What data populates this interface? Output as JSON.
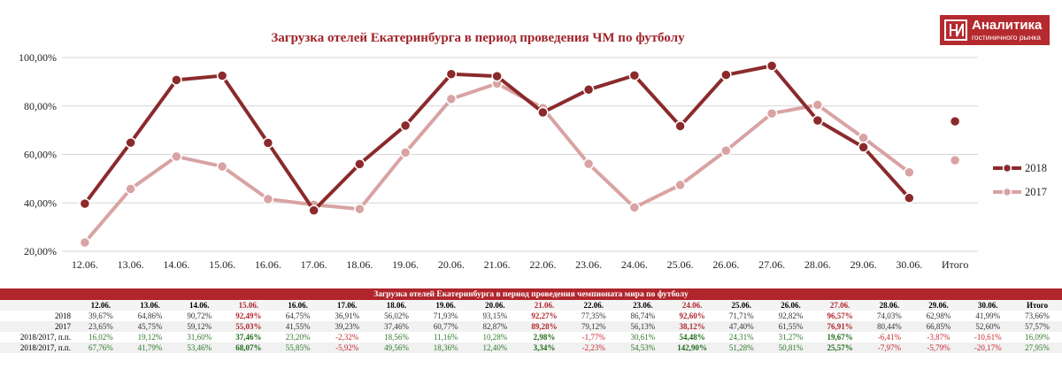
{
  "chart_data": {
    "type": "line",
    "title": "Загрузка отелей Екатеринбурга в период проведения ЧМ по футболу",
    "categories": [
      "12.06.",
      "13.06.",
      "14.06.",
      "15.06.",
      "16.06.",
      "17.06.",
      "18.06.",
      "19.06.",
      "20.06.",
      "21.06.",
      "22.06.",
      "23.06.",
      "24.06.",
      "25.06.",
      "26.06.",
      "27.06.",
      "28.06.",
      "29.06.",
      "30.06.",
      "Итого"
    ],
    "series": [
      {
        "name": "2018",
        "color": "#8b2a2c",
        "values": [
          39.67,
          64.86,
          90.72,
          92.49,
          64.75,
          36.91,
          56.02,
          71.93,
          93.15,
          92.27,
          77.35,
          86.74,
          92.6,
          71.71,
          92.82,
          96.57,
          74.03,
          62.98,
          41.99,
          73.66
        ]
      },
      {
        "name": "2017",
        "color": "#d9a3a3",
        "values": [
          23.65,
          45.75,
          59.12,
          55.03,
          41.55,
          39.23,
          37.46,
          60.77,
          82.87,
          89.28,
          79.12,
          56.13,
          38.12,
          47.4,
          61.55,
          76.91,
          80.44,
          66.85,
          52.6,
          57.57
        ]
      }
    ],
    "y_ticks": [
      "20,00%",
      "40,00%",
      "60,00%",
      "80,00%",
      "100,00%"
    ],
    "ylim": [
      20,
      100
    ],
    "total_separated": true,
    "grid": "horizontal",
    "legend_position": "right"
  },
  "logo": {
    "name": "Аналитика",
    "subtitle": "гостиничного рынка"
  },
  "table": {
    "title": "Загрузка отелей Екатеринбурга в период проведения чемпионата мира по футболу",
    "columns": [
      "",
      "12.06.",
      "13.06.",
      "14.06.",
      "15.06.",
      "16.06.",
      "17.06.",
      "18.06.",
      "19.06.",
      "20.06.",
      "21.06.",
      "22.06.",
      "23.06.",
      "24.06.",
      "25.06.",
      "26.06.",
      "27.06.",
      "28.06.",
      "29.06.",
      "30.06.",
      "Итого"
    ],
    "highlight_columns": [
      4,
      10,
      13,
      16
    ],
    "rows": [
      {
        "label": "2018",
        "cells": [
          "39,67%",
          "64,86%",
          "90,72%",
          "92,49%",
          "64,75%",
          "36,91%",
          "56,02%",
          "71,93%",
          "93,15%",
          "92,27%",
          "77,35%",
          "86,74%",
          "92,60%",
          "71,71%",
          "92,82%",
          "96,57%",
          "74,03%",
          "62,98%",
          "41,99%",
          "73,66%"
        ]
      },
      {
        "label": "2017",
        "cells": [
          "23,65%",
          "45,75%",
          "59,12%",
          "55,03%",
          "41,55%",
          "39,23%",
          "37,46%",
          "60,77%",
          "82,87%",
          "89,28%",
          "79,12%",
          "56,13%",
          "38,12%",
          "47,40%",
          "61,55%",
          "76,91%",
          "80,44%",
          "66,85%",
          "52,60%",
          "57,57%"
        ]
      },
      {
        "label": "2018/2017, п.п.",
        "cells": [
          "16,02%",
          "19,12%",
          "31,60%",
          "37,46%",
          "23,20%",
          "-2,32%",
          "18,56%",
          "11,16%",
          "10,28%",
          "2,98%",
          "-1,77%",
          "30,61%",
          "54,48%",
          "24,31%",
          "31,27%",
          "19,67%",
          "-6,41%",
          "-3,87%",
          "-10,61%",
          "16,09%"
        ]
      },
      {
        "label": "2018/2017, п.п.",
        "cells": [
          "67,76%",
          "41,79%",
          "53,46%",
          "68,07%",
          "55,85%",
          "-5,92%",
          "49,56%",
          "18,36%",
          "12,40%",
          "3,34%",
          "-2,23%",
          "54,53%",
          "142,90%",
          "51,28%",
          "50,81%",
          "25,57%",
          "-7,97%",
          "-5,79%",
          "-20,17%",
          "27,95%"
        ]
      }
    ]
  }
}
